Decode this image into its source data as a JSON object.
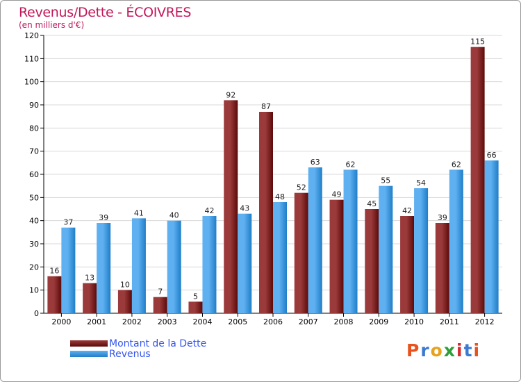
{
  "colors": {
    "title": "#c0185b",
    "legend_text": "#3355ee",
    "axis": "#000000",
    "grid": "#d8d8d8",
    "dette_dark": "#5c0a0a",
    "dette_light": "#9b3a3a",
    "revenus_dark": "#1f7ec8",
    "revenus_light": "#5fb0f0"
  },
  "logo": {
    "text": "Proxiti",
    "letter_colors": [
      "#e8521c",
      "#3a7ad0",
      "#e8a11c",
      "#2e9e3a",
      "#d42a2a",
      "#3a7ad0",
      "#e8521c"
    ]
  },
  "chart_data": {
    "type": "bar",
    "title": "Revenus/Dette - ÉCOIVRES",
    "subtitle": "(en milliers d'€)",
    "xlabel": "",
    "ylabel": "",
    "categories": [
      "2000",
      "2001",
      "2002",
      "2003",
      "2004",
      "2005",
      "2006",
      "2007",
      "2008",
      "2009",
      "2010",
      "2011",
      "2012"
    ],
    "ylim": [
      0,
      120
    ],
    "yticks": [
      0,
      10,
      20,
      30,
      40,
      50,
      60,
      70,
      80,
      90,
      100,
      110,
      120
    ],
    "grid": true,
    "legend_position": "bottom-left",
    "series": [
      {
        "name": "Montant de la Dette",
        "key": "dette",
        "values": [
          16,
          13,
          10,
          7,
          5,
          92,
          87,
          52,
          49,
          45,
          42,
          39,
          115
        ]
      },
      {
        "name": "Revenus",
        "key": "revenus",
        "values": [
          37,
          39,
          41,
          40,
          42,
          43,
          48,
          63,
          62,
          55,
          54,
          62,
          66
        ]
      }
    ]
  }
}
